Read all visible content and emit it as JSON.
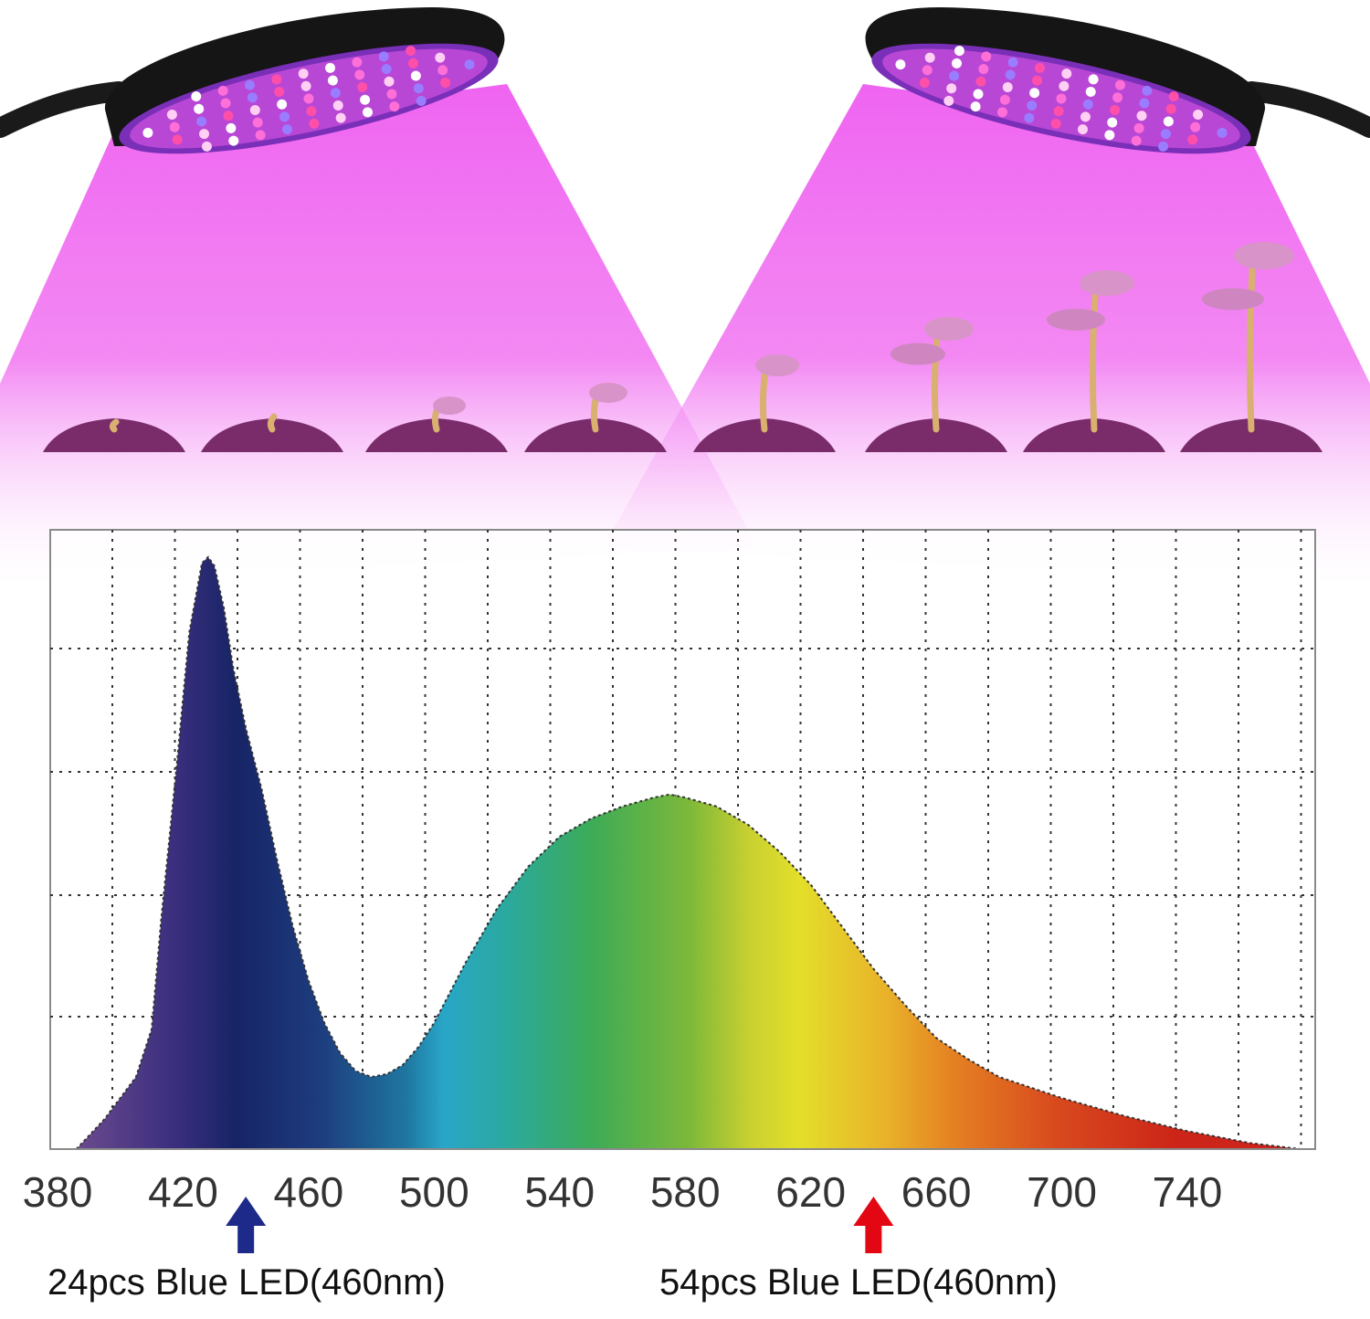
{
  "chart_data": {
    "type": "area",
    "title": "",
    "xlabel": "",
    "ylabel": "",
    "x_ticks": [
      380,
      420,
      460,
      500,
      540,
      580,
      620,
      660,
      700,
      740
    ],
    "xlim": [
      370,
      780
    ],
    "ylim": [
      0,
      1
    ],
    "grid": true,
    "series": [
      {
        "name": "spectrum",
        "x": [
          386,
          395,
          405,
          410,
          413,
          418,
          422,
          426,
          428,
          430,
          433,
          436,
          440,
          445,
          450,
          455,
          460,
          465,
          470,
          475,
          480,
          485,
          490,
          495,
          500,
          510,
          520,
          530,
          540,
          550,
          560,
          570,
          575,
          580,
          590,
          600,
          610,
          620,
          630,
          640,
          650,
          660,
          670,
          680,
          700,
          720,
          740,
          760,
          776
        ],
        "y": [
          0.0,
          0.05,
          0.12,
          0.2,
          0.38,
          0.64,
          0.86,
          0.975,
          0.985,
          0.97,
          0.9,
          0.8,
          0.7,
          0.6,
          0.48,
          0.37,
          0.28,
          0.21,
          0.16,
          0.13,
          0.12,
          0.125,
          0.14,
          0.17,
          0.21,
          0.31,
          0.4,
          0.47,
          0.52,
          0.55,
          0.57,
          0.585,
          0.59,
          0.585,
          0.57,
          0.54,
          0.495,
          0.44,
          0.37,
          0.3,
          0.24,
          0.185,
          0.15,
          0.12,
          0.085,
          0.055,
          0.03,
          0.01,
          0.0
        ]
      }
    ],
    "annotations": [
      {
        "x": 440,
        "color": "#1e2a8a",
        "text": "24pcs Blue LED(460nm)"
      },
      {
        "x": 640,
        "color": "#e30613",
        "text": "54pcs Blue LED(460nm)"
      }
    ]
  },
  "colors": {
    "glow": "#ee5cf0",
    "lamp_body": "#151515",
    "soil": "#7a2c6a",
    "blue_arrow": "#1e2a8a",
    "red_arrow": "#e30613"
  },
  "scene": {
    "lamps": [
      {
        "name": "left-grow-lamp",
        "icon": "led-panel-icon"
      },
      {
        "name": "right-grow-lamp",
        "icon": "led-panel-icon"
      }
    ],
    "growth_stages": [
      1,
      2,
      3,
      4,
      5,
      6,
      7,
      8
    ]
  }
}
